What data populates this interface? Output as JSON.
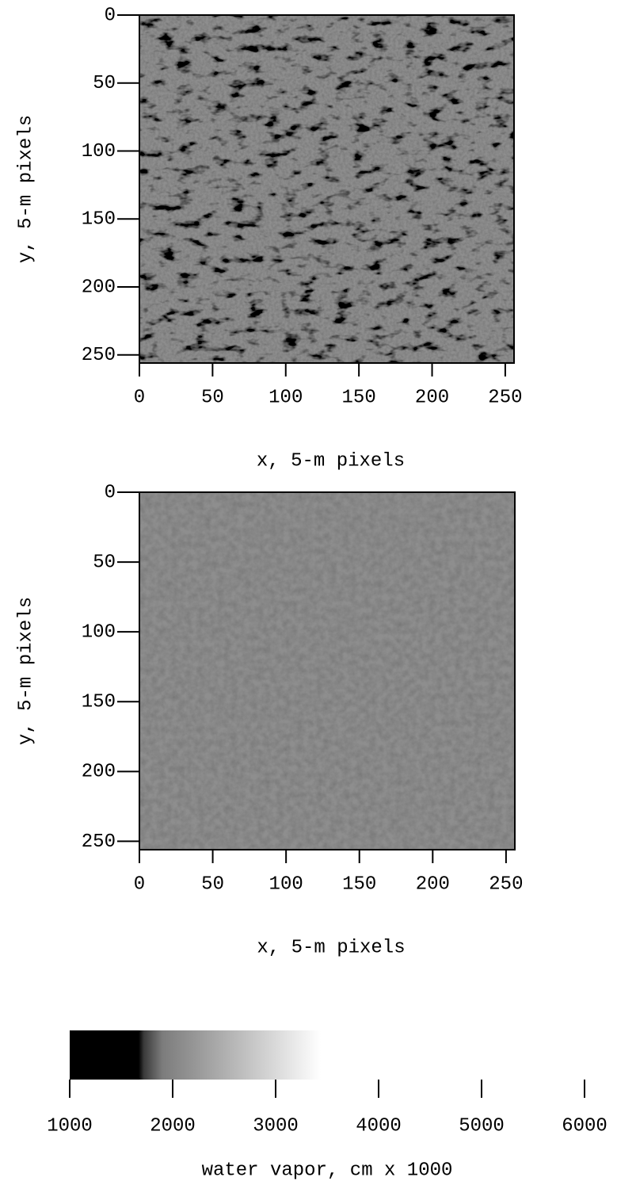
{
  "chart_data": [
    {
      "type": "image",
      "xlabel": "x, 5-m pixels",
      "ylabel": "y, 5-m pixels",
      "xlim": [
        0,
        256
      ],
      "ylim": [
        0,
        256
      ],
      "y_inverted": true,
      "xticks": [
        0,
        50,
        100,
        150,
        200,
        250
      ],
      "yticks": [
        0,
        50,
        100,
        150,
        200,
        250
      ]
    },
    {
      "type": "image",
      "xlabel": "x, 5-m pixels",
      "ylabel": "y, 5-m pixels",
      "xlim": [
        0,
        256
      ],
      "ylim": [
        0,
        256
      ],
      "y_inverted": true,
      "xticks": [
        0,
        50,
        100,
        150,
        200,
        250
      ],
      "yticks": [
        0,
        50,
        100,
        150,
        200,
        250
      ]
    },
    {
      "type": "colorbar",
      "xlabel": "water vapor, cm x 1000",
      "xlim": [
        1000,
        6000
      ],
      "xticks": [
        1000,
        2000,
        3000,
        4000,
        5000,
        6000
      ],
      "colormap": [
        {
          "value": 1000,
          "color": "#000000"
        },
        {
          "value": 1670,
          "color": "#000000"
        },
        {
          "value": 1720,
          "color": "#3a3a3a"
        },
        {
          "value": 1900,
          "color": "#7c7c7c"
        },
        {
          "value": 3440,
          "color": "#ffffff"
        }
      ]
    }
  ]
}
